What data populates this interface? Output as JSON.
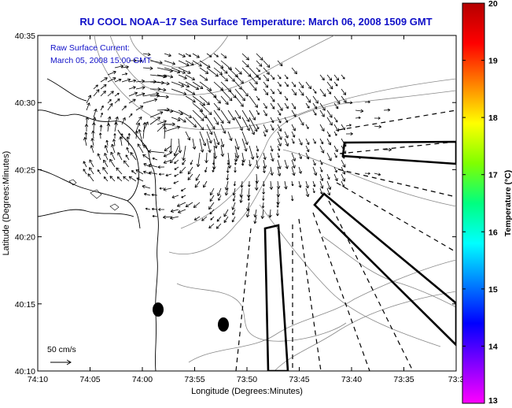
{
  "title": "RU COOL  NOAA–17  Sea Surface Temperature:  March 06, 2008 1509 GMT",
  "annotation": {
    "line1": "Raw Surface Current:",
    "line2": "March 05, 2008 15:00 GMT"
  },
  "scale": {
    "label": "50 cm/s",
    "speed_cm_s": 50
  },
  "axes": {
    "xlabel": "Longitude (Degrees:Minutes)",
    "ylabel": "Latitude (Degrees:Minutes)",
    "x_ticks": [
      "74:10",
      "74:05",
      "74:00",
      "73:55",
      "73:50",
      "73:45",
      "73:40",
      "73:35",
      "73:3"
    ],
    "y_ticks": [
      "40:35",
      "40:30",
      "40:25",
      "40:20",
      "40:15",
      "40:10"
    ],
    "x_range_min_west": [
      73.5,
      74.1667
    ],
    "y_range_lat": [
      40.1667,
      40.5833
    ]
  },
  "colorbar": {
    "label": "Temperature (°C)",
    "min": 13,
    "max": 20,
    "ticks": [
      "20",
      "19",
      "18",
      "17",
      "16",
      "15",
      "14",
      "13"
    ],
    "colors": [
      "#b40000",
      "#ff0000",
      "#ff8000",
      "#ffff00",
      "#80ff00",
      "#00ff80",
      "#00ffff",
      "#0080ff",
      "#0000ff",
      "#8000ff",
      "#ff00ff"
    ]
  },
  "map_elements": [
    "coastline",
    "bathymetry-contours",
    "surface-current-vectors",
    "shipping-lanes",
    "buoys"
  ]
}
